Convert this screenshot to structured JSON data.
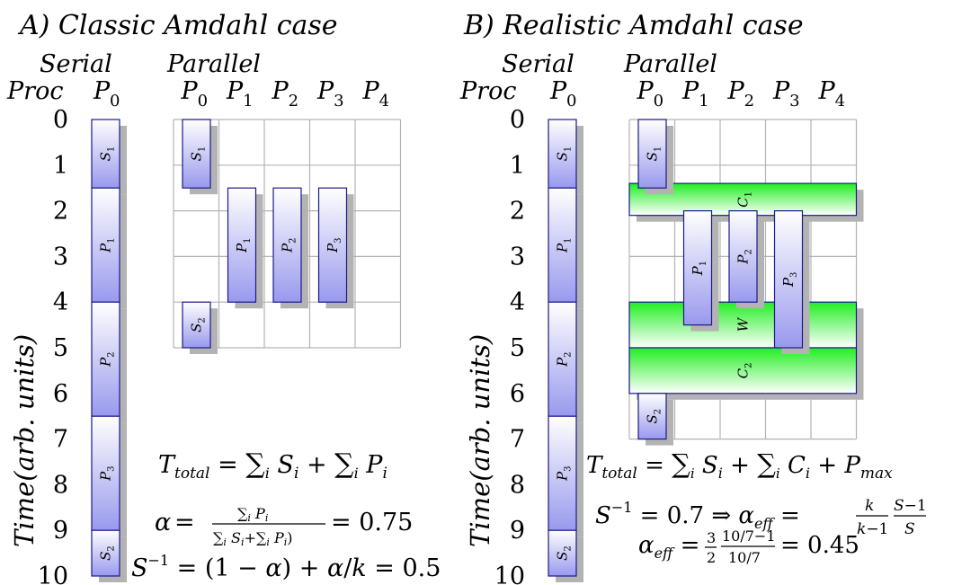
{
  "panels": [
    {
      "title": "A) Classic Amdahl case",
      "header_serial": "Serial",
      "header_parallel": "Parallel",
      "header_proc": "Proc",
      "header_p0_serial": "P0",
      "procs": [
        "P0",
        "P1",
        "P2",
        "P3",
        "P4"
      ],
      "ylabel": "Time(arb. units)",
      "yticks": [
        "0",
        "1",
        "2",
        "3",
        "4",
        "5",
        "6",
        "7",
        "8",
        "9",
        "10"
      ],
      "serial_blocks": [
        {
          "label": "S1",
          "start": 0,
          "end": 1.5
        },
        {
          "label": "P1",
          "start": 1.5,
          "end": 4
        },
        {
          "label": "P2",
          "start": 4,
          "end": 6.5
        },
        {
          "label": "P3",
          "start": 6.5,
          "end": 9
        },
        {
          "label": "S2",
          "start": 9,
          "end": 10
        }
      ],
      "parallel_blocks": [
        {
          "label": "S1",
          "proc": 0,
          "start": 0,
          "end": 1.5
        },
        {
          "label": "P1",
          "proc": 1,
          "start": 1.5,
          "end": 4
        },
        {
          "label": "P2",
          "proc": 2,
          "start": 1.5,
          "end": 4
        },
        {
          "label": "P3",
          "proc": 3,
          "start": 1.5,
          "end": 4
        },
        {
          "label": "S2",
          "proc": 0,
          "start": 4,
          "end": 5
        }
      ],
      "grid_rows": 5,
      "equations": [
        "T_total = ∑_i S_i + ∑_i P_i",
        "α = ∑_i P_i / (∑_i S_i + ∑_i P_i)) = 0.75",
        "S⁻¹ = (1 − α) + α/k = 0.5"
      ]
    },
    {
      "title": "B) Realistic Amdahl case",
      "header_serial": "Serial",
      "header_parallel": "Parallel",
      "header_proc": "Proc",
      "header_p0_serial": "P0",
      "procs": [
        "P0",
        "P1",
        "P2",
        "P3",
        "P4"
      ],
      "ylabel": "Time(arb. units)",
      "yticks": [
        "0",
        "1",
        "2",
        "3",
        "4",
        "5",
        "6",
        "7",
        "8",
        "9",
        "10"
      ],
      "serial_blocks": [
        {
          "label": "S1",
          "start": 0,
          "end": 1.5
        },
        {
          "label": "P1",
          "start": 1.5,
          "end": 4
        },
        {
          "label": "P2",
          "start": 4,
          "end": 6.5
        },
        {
          "label": "P3",
          "start": 6.5,
          "end": 9
        },
        {
          "label": "S2",
          "start": 9,
          "end": 10
        }
      ],
      "parallel_blocks": [
        {
          "label": "S1",
          "proc": 0,
          "start": 0,
          "end": 1.5
        },
        {
          "label": "P1",
          "proc": 1,
          "start": 2,
          "end": 4.5
        },
        {
          "label": "P2",
          "proc": 2,
          "start": 2,
          "end": 4
        },
        {
          "label": "P3",
          "proc": 3,
          "start": 2,
          "end": 5
        },
        {
          "label": "S2",
          "proc": 0,
          "start": 6,
          "end": 7
        }
      ],
      "green_blocks": [
        {
          "label": "C1",
          "start": 1.4,
          "end": 2.1
        },
        {
          "label": "W",
          "start": 4,
          "end": 5
        },
        {
          "label": "C2",
          "start": 5,
          "end": 6
        }
      ],
      "grid_rows": 7,
      "equations": [
        "T_total = ∑_i S_i + ∑_i C_i + P_max",
        "S⁻¹ = 0.7  ⇒ α_eff = k/(k−1) · (S−1)/S",
        "α_eff = 3/2 · (10/7−1)/(10/7) = 0.45"
      ]
    }
  ],
  "colors": {
    "blue_top": "#ffffff",
    "blue_bottom": "#9999ee",
    "green_top": "#33ee33",
    "green_bottom": "#ffffff",
    "outline": "#1a1a8c",
    "grid": "#b3b3b3",
    "shadow": "#b3b3b3"
  }
}
